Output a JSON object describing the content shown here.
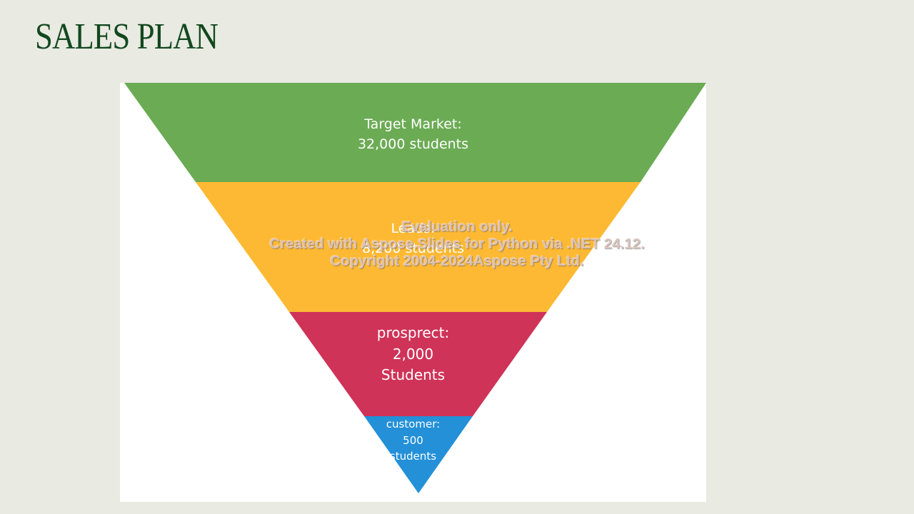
{
  "slide": {
    "title": "SALES PLAN"
  },
  "funnel": {
    "stages": [
      {
        "lines": [
          "Target Market:",
          "32,000 students"
        ],
        "color": "#6bab54"
      },
      {
        "lines": [
          "Leads:",
          "8,200 students"
        ],
        "color": "#fdb933"
      },
      {
        "lines": [
          "prosprect:",
          "2,000",
          "Students"
        ],
        "color": "#cf3358"
      },
      {
        "lines": [
          "customer:",
          "500",
          "students"
        ],
        "color": "#2390d8"
      }
    ]
  },
  "watermark": {
    "lines": [
      "Evaluation only.",
      "Created with Aspose.Slides for Python via .NET 24.12.",
      "Copyright 2004-2024Aspose Pty Ltd."
    ]
  }
}
